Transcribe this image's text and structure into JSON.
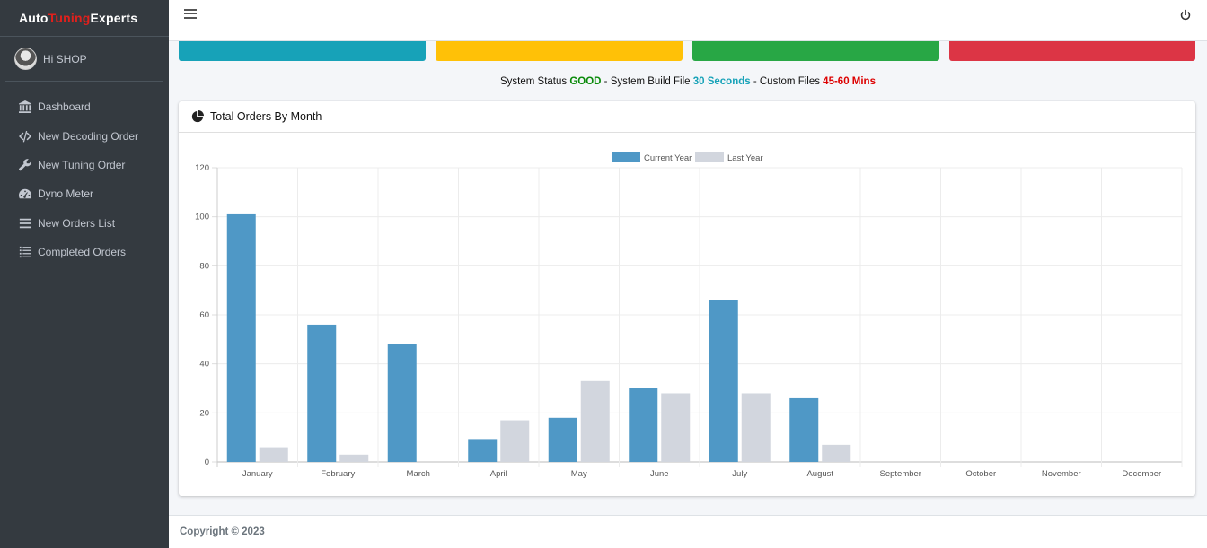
{
  "brand": {
    "part1": "Auto ",
    "part2": "Tuning",
    "part3": " Experts"
  },
  "user": {
    "greeting": "Hi SHOP"
  },
  "sidebar": {
    "items": [
      {
        "label": "Dashboard",
        "icon": "bank-icon"
      },
      {
        "label": "New Decoding Order",
        "icon": "code-icon"
      },
      {
        "label": "New Tuning Order",
        "icon": "wrench-icon"
      },
      {
        "label": "Dyno Meter",
        "icon": "gauge-icon"
      },
      {
        "label": "New Orders List",
        "icon": "list-icon"
      },
      {
        "label": "Completed Orders",
        "icon": "tasks-icon"
      }
    ]
  },
  "topbar": {
    "menu_icon": "hamburger-icon",
    "power_icon": "power-icon"
  },
  "info_boxes": {
    "colors": [
      "#17a2b8",
      "#ffc107",
      "#28a745",
      "#dc3545"
    ]
  },
  "status": {
    "prefix": "System Status ",
    "status_value": "GOOD",
    "build_text": " - System Build File ",
    "build_value": "30 Seconds",
    "custom_text": " - Custom Files ",
    "custom_value": "45-60 Mins"
  },
  "card": {
    "title": "Total Orders By Month",
    "icon": "pie-chart-icon"
  },
  "chart_data": {
    "type": "bar",
    "categories": [
      "January",
      "February",
      "March",
      "April",
      "May",
      "June",
      "July",
      "August",
      "September",
      "October",
      "November",
      "December"
    ],
    "series": [
      {
        "name": "Current Year",
        "color": "#4f98c6",
        "values": [
          101,
          56,
          48,
          9,
          18,
          30,
          66,
          26,
          0,
          0,
          0,
          0
        ]
      },
      {
        "name": "Last Year",
        "color": "#d2d6de",
        "values": [
          6,
          3,
          0,
          17,
          33,
          28,
          28,
          7,
          0,
          0,
          0,
          0
        ]
      }
    ],
    "ylim": [
      0,
      120
    ],
    "yticks": [
      "0",
      "20",
      "40",
      "60",
      "80",
      "100",
      "120"
    ],
    "grid": true,
    "legend": "top-center"
  },
  "footer": {
    "text": "Copyright © 2023"
  }
}
